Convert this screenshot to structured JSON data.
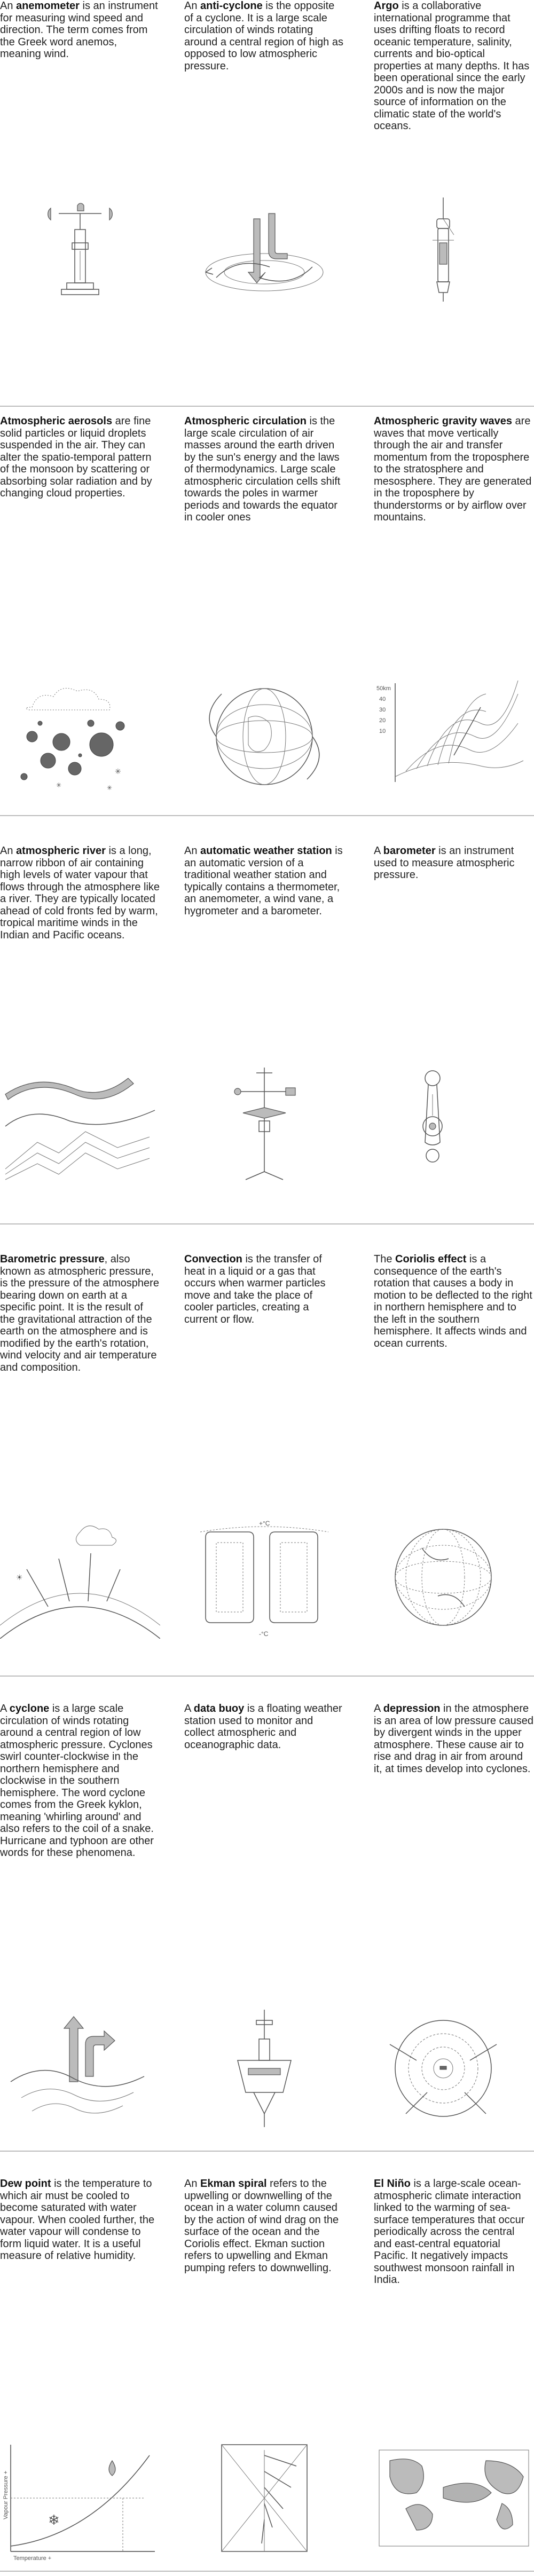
{
  "entries": [
    {
      "pre": "An ",
      "term": "anemometer",
      "body": " is an instrument for measuring wind speed and direction. The term comes from the Greek word anemos, meaning wind.",
      "icon": "anemometer-icon"
    },
    {
      "pre": "An ",
      "term": "anti-cyclone",
      "body": " is the opposite of a cyclone. It is a large scale circulation of winds rotating around a central region of high as opposed to low atmospheric pressure.",
      "icon": "anti-cyclone-icon"
    },
    {
      "pre": "",
      "term": "Argo",
      "body": " is a collaborative international programme that uses drifting floats to record oceanic temperature, salinity, currents and bio-optical properties at many depths. It has been operational since the early 2000s and is now the major source of information on the climatic state of the world's oceans.",
      "icon": "argo-float-icon"
    },
    {
      "pre": "",
      "term": "Atmospheric aerosols",
      "body": " are fine solid particles or liquid droplets suspended in the air. They can alter the spatio-temporal pattern of the monsoon by scattering or absorbing solar radiation and by changing cloud properties.",
      "icon": "aerosols-icon"
    },
    {
      "pre": "",
      "term": "Atmospheric circulation",
      "body": " is the large scale circulation of air masses around the earth driven by the sun's energy and the laws of thermodynamics. Large scale atmospheric circulation cells shift towards the poles in warmer periods and towards the equator in cooler ones",
      "icon": "globe-circulation-icon"
    },
    {
      "pre": "",
      "term": "Atmospheric gravity waves",
      "body": " are waves that move vertically through the air and transfer momentum from the troposphere to the stratosphere and mesosphere. They are generated in the troposphere by thunderstorms or by airflow over mountains.",
      "icon": "gravity-waves-icon"
    },
    {
      "pre": "An ",
      "term": "atmospheric river",
      "body": " is a long, narrow ribbon of air containing high levels of water vapour that flows through the atmosphere like a river. They are typically located ahead of cold fronts fed by warm, tropical maritime winds in the Indian and Pacific oceans.",
      "icon": "atmospheric-river-icon"
    },
    {
      "pre": "An ",
      "term": "automatic weather station",
      "body": " is an automatic version of a traditional weather station and typically contains a thermometer, an anemometer, a wind vane, a hygrometer and a barometer.",
      "icon": "weather-station-icon"
    },
    {
      "pre": "A ",
      "term": "barometer",
      "body": " is an instrument used to measure atmospheric pressure.",
      "icon": "barometer-icon"
    },
    {
      "pre": "",
      "term": "Barometric pressure",
      "body": ", also known as atmospheric pressure, is the pressure of the atmosphere bearing down on earth at a specific point. It is the result of the gravitational attraction of the earth on the atmosphere and is modified by the earth's rotation, wind velocity and air temperature and composition.",
      "icon": "barometric-pressure-icon"
    },
    {
      "pre": "",
      "term": "Convection",
      "body": " is the transfer of heat in a liquid or a gas that occurs when warmer particles move and take the place of cooler particles, creating a current or flow.",
      "icon": "convection-icon"
    },
    {
      "pre": "The ",
      "term": "Coriolis effect",
      "body": " is a consequence of the earth's rotation that causes a body in motion to be deflected to the right in northern hemisphere and to the left in the southern hemisphere. It affects winds and ocean currents.",
      "icon": "coriolis-globe-icon"
    },
    {
      "pre": "A ",
      "term": "cyclone",
      "body": " is a large scale circulation of winds rotating around a central region of low atmospheric pressure. Cyclones swirl counter-clockwise in the northern hemisphere and clockwise in the southern hemisphere. The word cyclone comes from the Greek kyklon, meaning 'whirling around' and also refers to the coil of a snake. Hurricane and typhoon are other words for these phenomena.",
      "icon": "cyclone-icon"
    },
    {
      "pre": "A ",
      "term": "data buoy",
      "body": " is a floating weather station used to monitor and collect atmospheric and oceanographic data.",
      "icon": "data-buoy-icon"
    },
    {
      "pre": "A ",
      "term": "depression",
      "body": " in the atmosphere is an area of low pressure caused by divergent winds in the upper atmosphere. These cause air to rise and drag in air from around it, at times develop into cyclones.",
      "icon": "depression-icon"
    },
    {
      "pre": "",
      "term": "Dew point",
      "body": " is the temperature to which air must be cooled to become saturated with water vapour. When cooled further, the water vapour will condense to form liquid water. It is a useful measure of relative humidity.",
      "icon": "dew-point-graph-icon"
    },
    {
      "pre": "An ",
      "term": "Ekman spiral",
      "body": " refers to the upwelling or downwelling of the ocean in a water column caused by the action of wind drag on the surface of the ocean and the Coriolis effect. Ekman suction refers to upwelling and Ekman pumping refers to downwelling.",
      "icon": "ekman-spiral-icon"
    },
    {
      "pre": "",
      "term": "El Niño",
      "body": " is a large-scale ocean-atmospheric climate interaction linked to the warming of sea-surface temperatures that occur periodically across the central and east-central equatorial Pacific. It negatively impacts southwest monsoon rainfall in India.",
      "icon": "el-nino-map-icon"
    }
  ],
  "figure_labels": {
    "gravity_waves_scale": [
      "50km",
      "40",
      "30",
      "20",
      "10"
    ],
    "convection_warm": "+°C",
    "convection_cold": "-°C",
    "dew_y_axis": "Vapour Pressure +",
    "dew_x_axis": "Temperature +"
  },
  "colors": {
    "text": "#222222",
    "separator": "#bdbdbd",
    "illustration": "#555555"
  }
}
